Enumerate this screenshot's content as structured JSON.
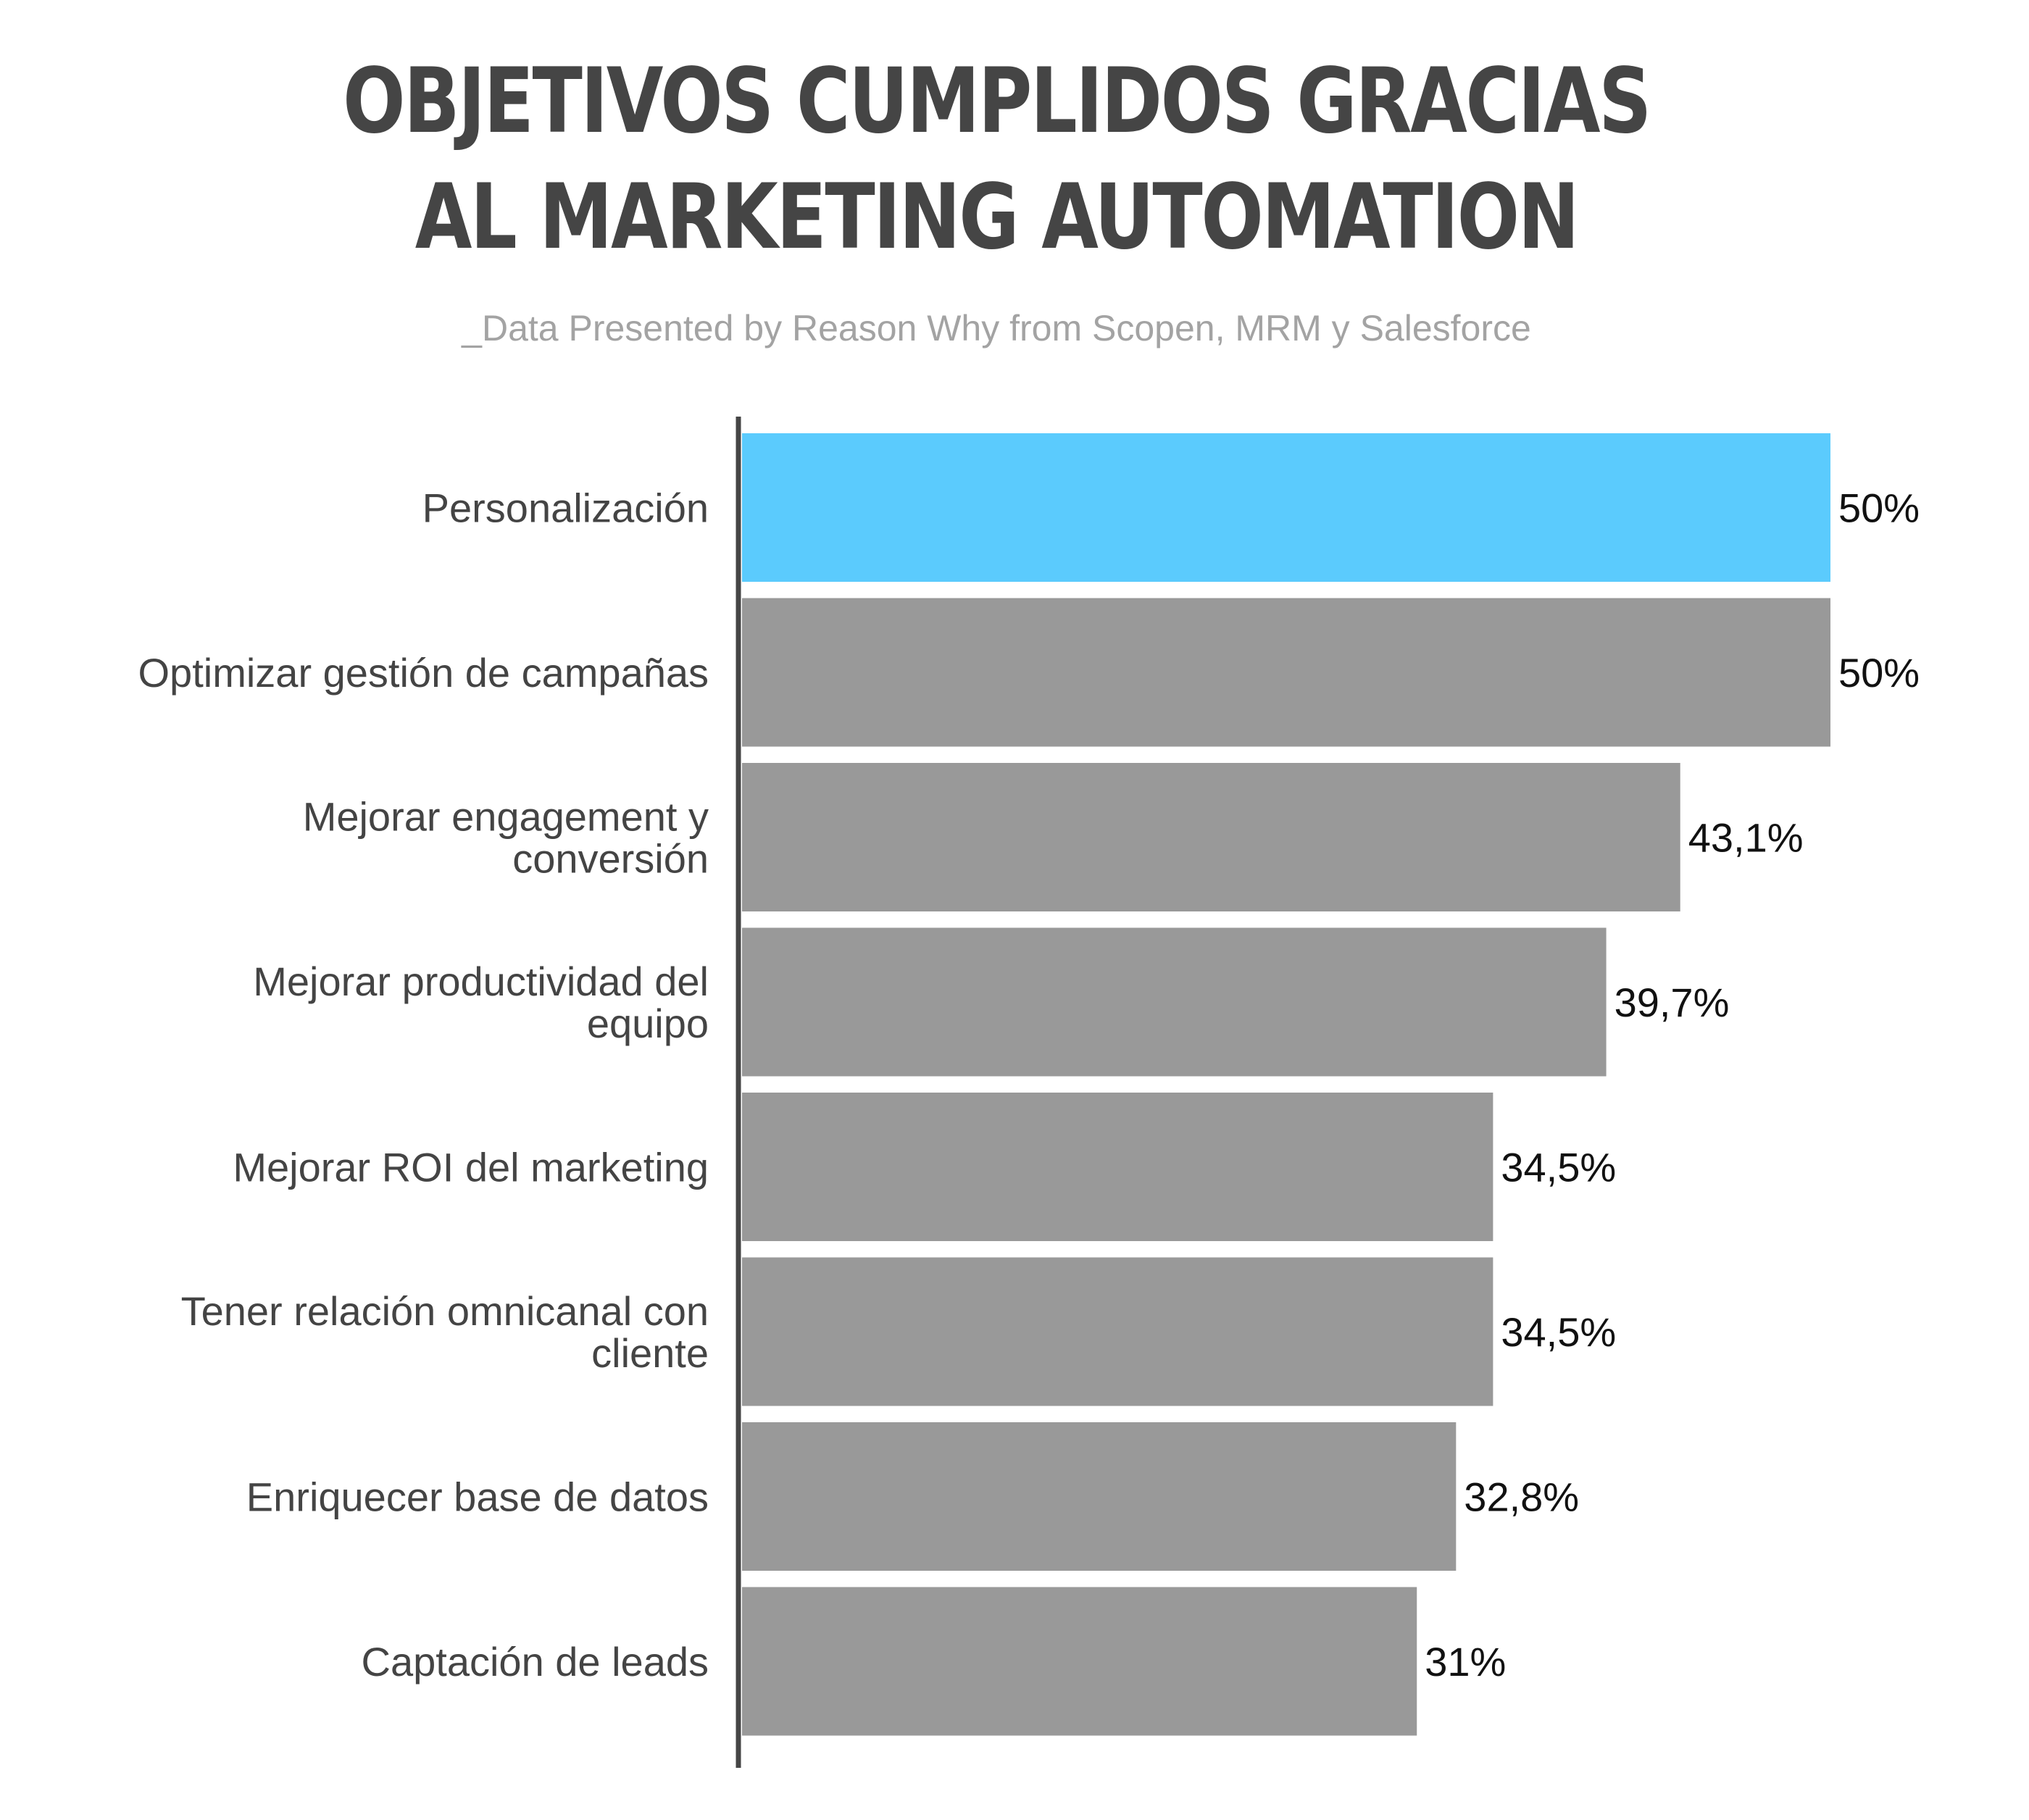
{
  "chart_data": {
    "type": "bar",
    "orientation": "horizontal",
    "title": "OBJETIVOS CUMPLIDOS GRACIAS AL MARKETING AUTOMATION",
    "subtitle": "_Data Presented by Reason Why from Scopen, MRM y Salesforce",
    "xlim": [
      0,
      50
    ],
    "grid": false,
    "legend": "none",
    "highlight_color": "#5bcbfd",
    "bar_color": "#999999",
    "axis_color": "#454545",
    "categories": [
      [
        "Personalización"
      ],
      [
        "Optimizar gestión de campañas"
      ],
      [
        "Mejorar engagement y",
        "conversión"
      ],
      [
        "Mejorar productividad del",
        "equipo"
      ],
      [
        "Mejorar ROI del marketing"
      ],
      [
        "Tener relación omnicanal con",
        "cliente"
      ],
      [
        "Enriquecer base de datos"
      ],
      [
        "Captación de leads"
      ]
    ],
    "values": [
      50,
      50,
      43.1,
      39.7,
      34.5,
      34.5,
      32.8,
      31
    ],
    "value_labels": [
      "50%",
      "50%",
      "43,1%",
      "39,7%",
      "34,5%",
      "34,5%",
      "32,8%",
      "31%"
    ],
    "highlighted": [
      0
    ]
  }
}
